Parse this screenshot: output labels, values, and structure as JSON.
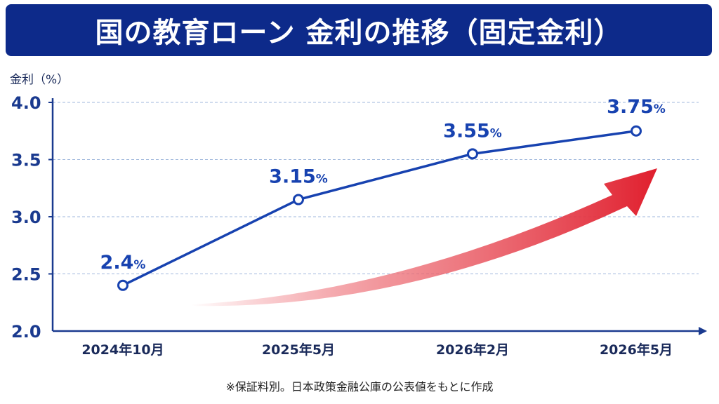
{
  "title": "国の教育ローン 金利の推移（固定金利）",
  "footnote": "※保証料別。日本政策金融公庫の公表値をもとに作成",
  "colors": {
    "banner": "#0d2a8a",
    "line": "#1742b0",
    "axis": "#1a3a8f",
    "label": "#1742b0",
    "grid": "#9fb7dc",
    "arrow": "#e8303c"
  },
  "chart_data": {
    "type": "line",
    "categories": [
      "2024年10月",
      "2025年5月",
      "2026年2月",
      "2026年5月"
    ],
    "values": [
      2.4,
      3.15,
      3.55,
      3.75
    ],
    "data_labels": [
      {
        "num": "2.4",
        "unit": "%"
      },
      {
        "num": "3.15",
        "unit": "%"
      },
      {
        "num": "3.55",
        "unit": "%"
      },
      {
        "num": "3.75",
        "unit": "%"
      }
    ],
    "ylabel": "金利（%）",
    "xlabel": "",
    "ylim": [
      2.0,
      4.0
    ],
    "yticks": [
      "2.0",
      "2.5",
      "3.0",
      "3.5",
      "4.0"
    ],
    "grid": true,
    "annotation": "upward-trend-arrow"
  }
}
